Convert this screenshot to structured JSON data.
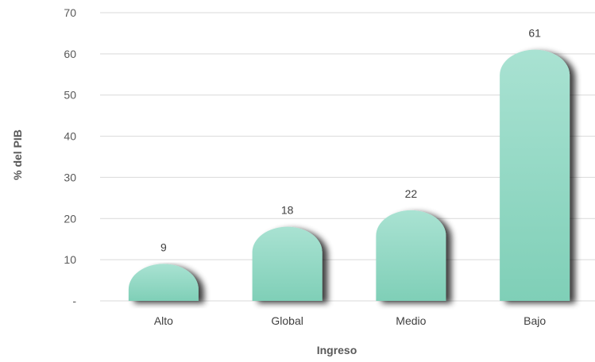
{
  "chart_data": {
    "type": "bar",
    "categories": [
      "Alto",
      "Global",
      "Medio",
      "Bajo"
    ],
    "values": [
      9,
      18,
      22,
      61
    ],
    "data_labels": [
      "9",
      "18",
      "22",
      "61"
    ],
    "xlabel": "Ingreso",
    "ylabel": "% del PIB",
    "ylim": [
      0,
      70
    ],
    "yticks": [
      "-",
      "10",
      "20",
      "30",
      "40",
      "50",
      "60",
      "70"
    ],
    "grid": true,
    "legend": "none",
    "bar_color": "#86D3BD"
  }
}
